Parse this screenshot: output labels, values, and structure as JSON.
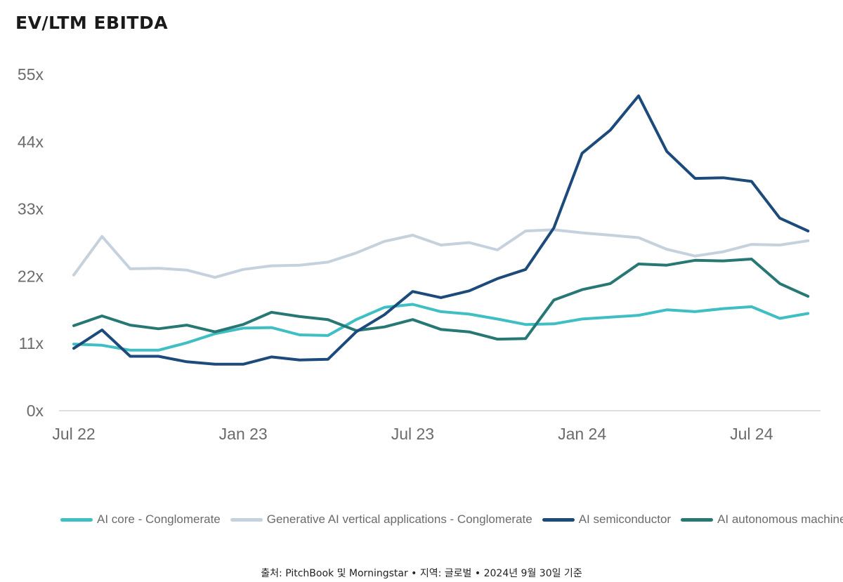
{
  "chart_data": {
    "type": "line",
    "title": "EV/LTM EBITDA",
    "xlabel": "",
    "ylabel": "",
    "ylim": [
      0,
      55
    ],
    "yticks": [
      0,
      11,
      22,
      33,
      44,
      55
    ],
    "ytick_labels": [
      "0x",
      "11x",
      "22x",
      "33x",
      "44x",
      "55x"
    ],
    "x_labels": [
      "Jul 22",
      "Jan 23",
      "Jul 23",
      "Jan 24",
      "Jul 24"
    ],
    "x_label_indices": [
      0,
      6,
      12,
      18,
      24
    ],
    "grid": false,
    "legend_position": "bottom",
    "series": [
      {
        "name": "Generative AI vertical applications - Conglomerate",
        "color": "#c5d2de",
        "values": [
          22.2,
          28.5,
          23.2,
          23.3,
          23.0,
          21.8,
          23.1,
          23.7,
          23.8,
          24.3,
          25.8,
          27.7,
          28.7,
          27.1,
          27.5,
          26.3,
          29.4,
          29.6,
          29.1,
          28.7,
          28.3,
          26.4,
          25.3,
          26.0,
          27.2,
          27.1,
          27.8
        ]
      },
      {
        "name": "AI core - Conglomerate",
        "color": "#3fbfc4",
        "values": [
          10.9,
          10.7,
          9.9,
          9.9,
          11.1,
          12.6,
          13.5,
          13.6,
          12.4,
          12.3,
          14.9,
          16.9,
          17.4,
          16.2,
          15.8,
          15.0,
          14.1,
          14.2,
          15.0,
          15.3,
          15.6,
          16.5,
          16.2,
          16.7,
          17.0,
          15.1,
          15.9
        ]
      },
      {
        "name": "AI autonomous machines",
        "color": "#277874",
        "values": [
          13.9,
          15.5,
          14.0,
          13.4,
          14.0,
          12.9,
          14.1,
          16.1,
          15.4,
          14.9,
          13.1,
          13.7,
          14.9,
          13.3,
          12.9,
          11.7,
          11.8,
          18.1,
          19.8,
          20.8,
          24.0,
          23.8,
          24.6,
          24.5,
          24.8,
          20.8,
          18.7
        ]
      },
      {
        "name": "AI semiconductor",
        "color": "#1c4a7a",
        "values": [
          10.2,
          13.2,
          8.9,
          8.9,
          8.0,
          7.6,
          7.6,
          8.8,
          8.3,
          8.4,
          12.9,
          15.7,
          19.5,
          18.5,
          19.6,
          21.6,
          23.1,
          29.9,
          42.1,
          45.9,
          51.5,
          42.4,
          38.0,
          38.1,
          37.5,
          31.5,
          29.4
        ]
      }
    ]
  },
  "legend": {
    "items": [
      {
        "label": "AI core - Conglomerate",
        "color": "#3fbfc4"
      },
      {
        "label": "Generative AI vertical applications - Conglomerate",
        "color": "#c5d2de"
      },
      {
        "label": "AI semiconductor",
        "color": "#1c4a7a"
      },
      {
        "label": "AI autonomous machines",
        "color": "#277874"
      }
    ]
  },
  "source": "출처: PitchBook 및 Morningstar • 지역: 글로벌 • 2024년 9월 30일 기준"
}
